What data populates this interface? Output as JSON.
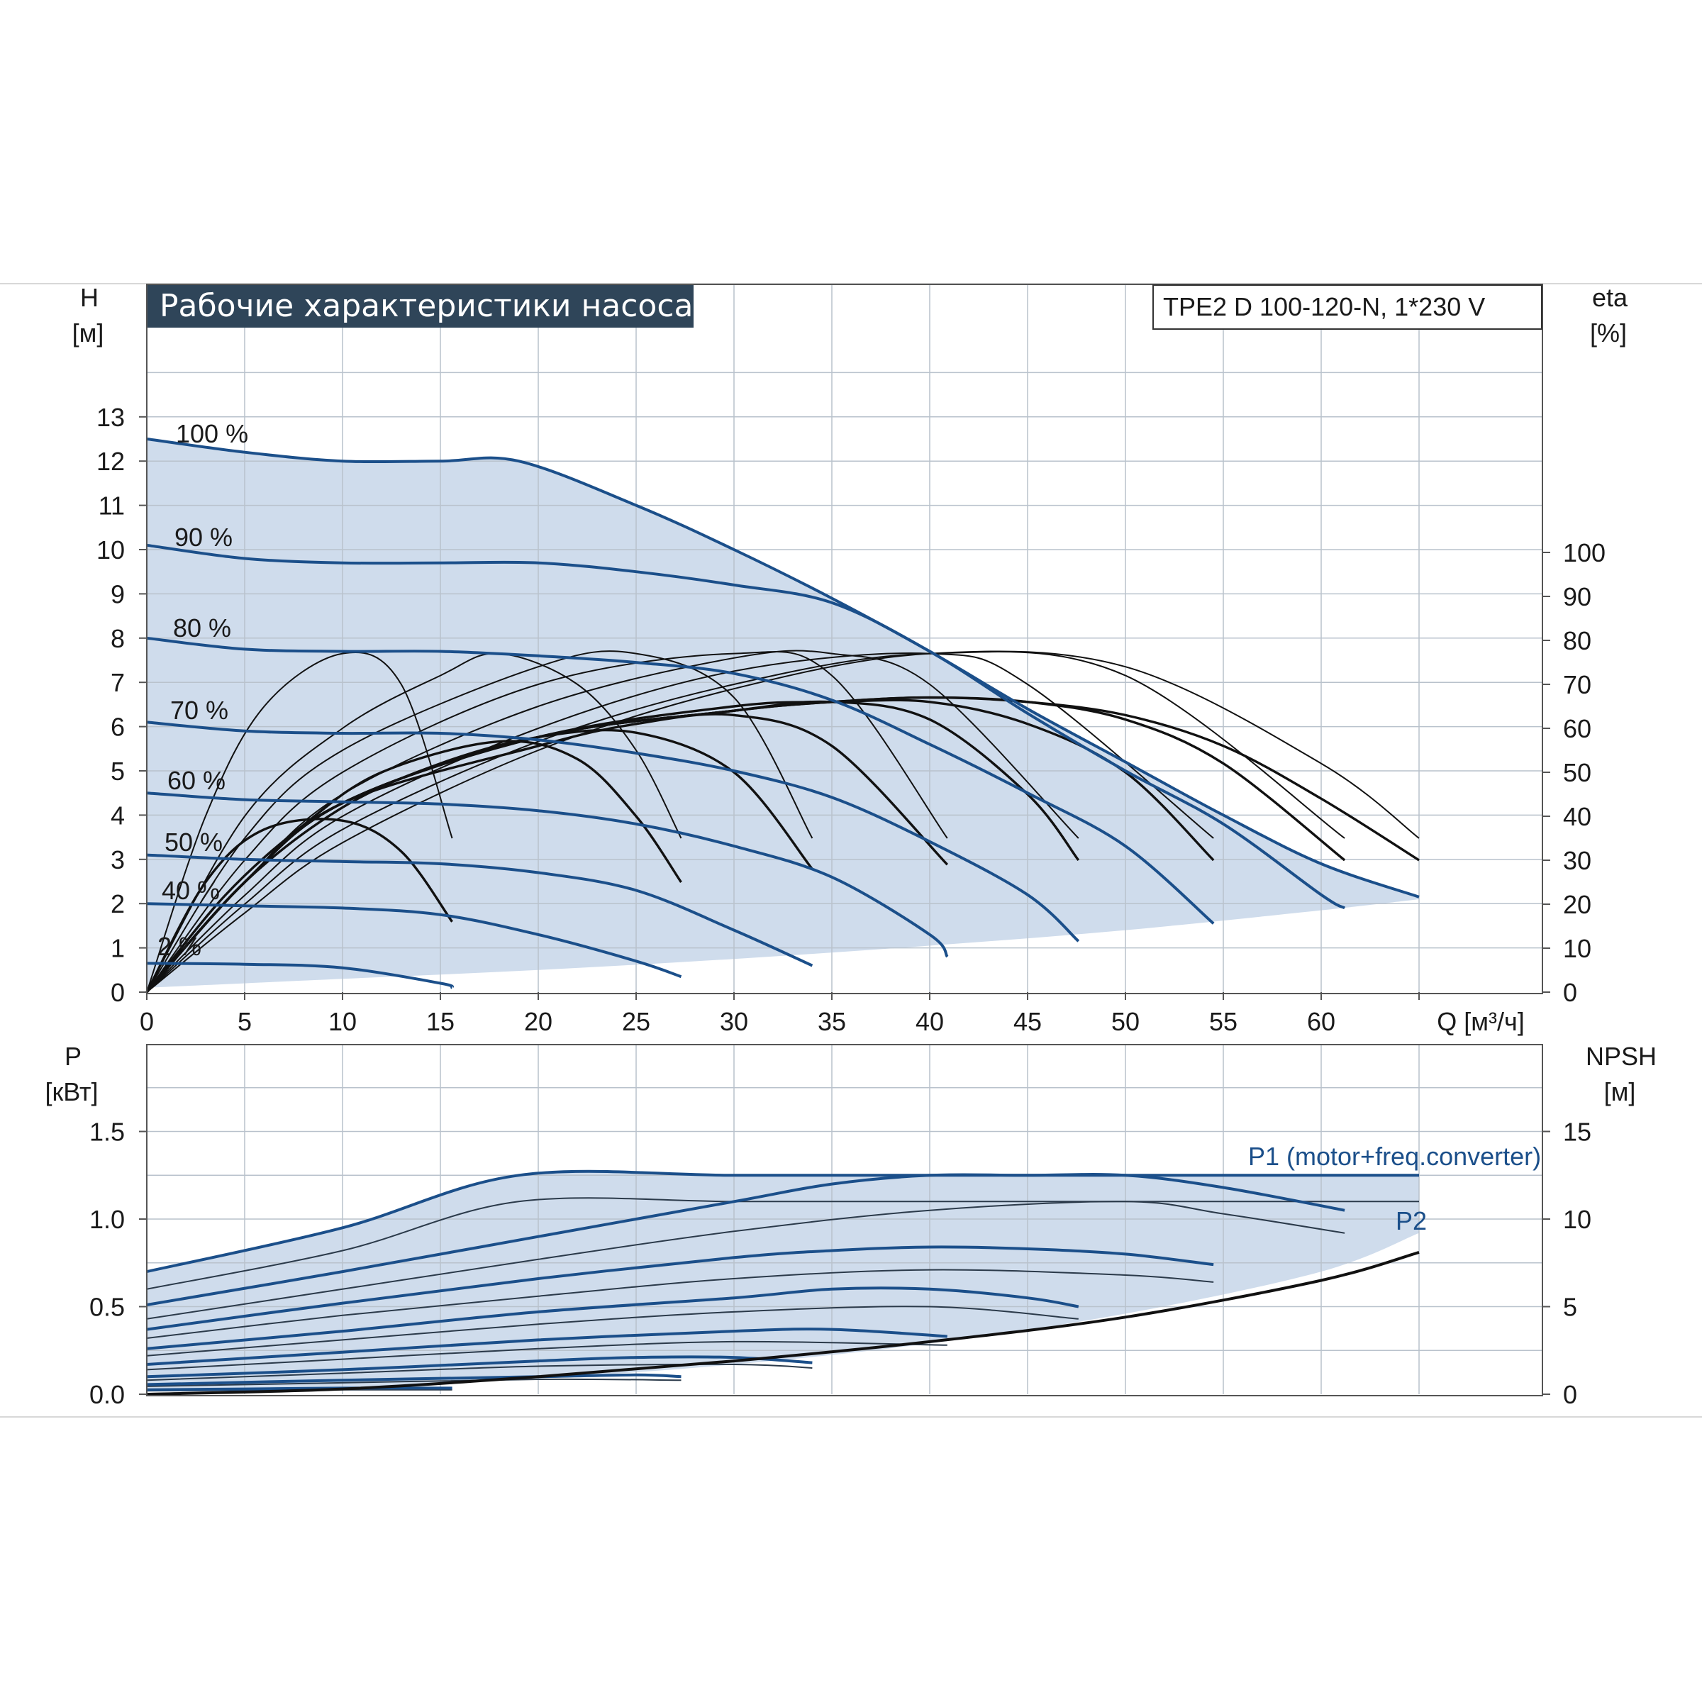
{
  "chart_data": [
    {
      "type": "line",
      "title": "Рабочие характеристики насоса",
      "model": "TPE2 D 100-120-N, 1*230 V",
      "ylabel_left": "H",
      "ylabel_left_unit": "[м]",
      "ylabel_right": "eta",
      "ylabel_right_unit": "[%]",
      "xlabel": "Q [м³/ч]",
      "xlim": [
        0,
        65
      ],
      "ylim": [
        0,
        13
      ],
      "eta_ylim": [
        0,
        100
      ],
      "grid": true,
      "x_ticks": [
        "0",
        "5",
        "10",
        "15",
        "20",
        "25",
        "30",
        "35",
        "40",
        "45",
        "50",
        "55",
        "60"
      ],
      "y_ticks_left": [
        "0",
        "1",
        "2",
        "3",
        "4",
        "5",
        "6",
        "7",
        "8",
        "9",
        "10",
        "11",
        "12",
        "13"
      ],
      "y_ticks_right": [
        "0",
        "10",
        "20",
        "30",
        "40",
        "50",
        "60",
        "70",
        "80",
        "90",
        "100"
      ],
      "speed_curve_labels": [
        "100 %",
        "90 %",
        "80 %",
        "70 %",
        "60 %",
        "50 %",
        "40 %",
        "2 %"
      ],
      "operating_range_min_head": {
        "x": [
          0,
          10,
          20,
          30,
          40,
          50,
          60,
          65
        ],
        "y": [
          0.1,
          0.3,
          0.5,
          0.75,
          1.05,
          1.4,
          1.85,
          2.1
        ]
      },
      "head_series": [
        {
          "name": "100 %",
          "x": [
            0,
            5,
            10,
            15,
            19,
            25,
            30,
            35,
            40,
            45,
            50,
            55,
            60,
            65
          ],
          "y": [
            12.5,
            12.2,
            12.0,
            12.0,
            12.0,
            11.0,
            10.0,
            8.9,
            7.7,
            6.4,
            5.2,
            4.0,
            2.9,
            2.15
          ]
        },
        {
          "name": "90 %",
          "x": [
            0,
            5,
            10,
            15,
            20,
            25,
            30,
            35,
            40,
            45,
            50,
            55,
            60,
            61.2
          ],
          "y": [
            10.1,
            9.8,
            9.7,
            9.7,
            9.7,
            9.5,
            9.2,
            8.8,
            7.7,
            6.3,
            5.0,
            3.8,
            2.2,
            1.9
          ]
        },
        {
          "name": "80 %",
          "x": [
            0,
            5,
            10,
            15,
            20,
            25,
            30,
            35,
            40,
            45,
            50,
            54.5
          ],
          "y": [
            8.0,
            7.75,
            7.7,
            7.7,
            7.6,
            7.45,
            7.2,
            6.6,
            5.6,
            4.5,
            3.3,
            1.55
          ]
        },
        {
          "name": "70 %",
          "x": [
            0,
            5,
            10,
            15,
            20,
            25,
            30,
            35,
            40,
            45,
            47.6
          ],
          "y": [
            6.1,
            5.9,
            5.85,
            5.85,
            5.7,
            5.4,
            5.0,
            4.4,
            3.4,
            2.2,
            1.15
          ]
        },
        {
          "name": "60 %",
          "x": [
            0,
            5,
            10,
            15,
            20,
            25,
            30,
            35,
            40,
            40.9
          ],
          "y": [
            4.5,
            4.35,
            4.3,
            4.25,
            4.1,
            3.8,
            3.3,
            2.6,
            1.3,
            0.8
          ]
        },
        {
          "name": "50 %",
          "x": [
            0,
            5,
            10,
            15,
            20,
            25,
            30,
            34
          ],
          "y": [
            3.1,
            3.0,
            2.95,
            2.9,
            2.7,
            2.3,
            1.4,
            0.6
          ]
        },
        {
          "name": "40 %",
          "x": [
            0,
            5,
            10,
            15,
            20,
            25,
            27.3
          ],
          "y": [
            2.0,
            1.95,
            1.9,
            1.75,
            1.3,
            0.7,
            0.35
          ]
        },
        {
          "name": "2 %",
          "x": [
            0,
            5,
            10,
            15,
            15.6
          ],
          "y": [
            0.65,
            0.63,
            0.55,
            0.2,
            0.1
          ]
        }
      ],
      "eta_series": [
        {
          "x": [
            0,
            3,
            6,
            10,
            13,
            15.6
          ],
          "y": [
            0,
            25,
            37,
            39,
            32,
            16
          ]
        },
        {
          "x": [
            0,
            4,
            8,
            12,
            18,
            22,
            25,
            27.3
          ],
          "y": [
            0,
            22,
            38,
            50,
            57,
            53,
            40,
            25
          ]
        },
        {
          "x": [
            0,
            5,
            10,
            15,
            20,
            25,
            30,
            34
          ],
          "y": [
            0,
            25,
            42,
            52,
            58,
            59,
            50,
            28
          ]
        },
        {
          "x": [
            0,
            5,
            10,
            20,
            25,
            30,
            35,
            40.9
          ],
          "y": [
            0,
            25,
            43,
            56,
            61,
            63,
            56,
            29
          ]
        },
        {
          "x": [
            0,
            5,
            10,
            20,
            30,
            35,
            40,
            45,
            47.6
          ],
          "y": [
            0,
            25,
            43,
            58,
            64,
            66,
            62,
            45,
            30
          ]
        },
        {
          "x": [
            0,
            5,
            10,
            20,
            30,
            35,
            40,
            45,
            50,
            54.5
          ],
          "y": [
            0,
            25,
            43,
            58,
            65,
            66,
            66,
            61,
            50,
            30
          ]
        },
        {
          "x": [
            0,
            5,
            10,
            20,
            30,
            35,
            40,
            45,
            50,
            55,
            61.2
          ],
          "y": [
            0,
            25,
            43,
            58,
            64,
            66,
            67,
            66,
            62,
            52,
            30
          ]
        },
        {
          "x": [
            0,
            5,
            10,
            20,
            30,
            35,
            40,
            45,
            50,
            55,
            60,
            65
          ],
          "y": [
            0,
            25,
            43,
            58,
            64,
            66,
            67,
            66,
            63,
            56,
            44,
            30
          ]
        },
        {
          "x": [
            0,
            3,
            6,
            10,
            13,
            15.6
          ],
          "y": [
            0,
            40,
            65,
            77,
            70,
            35
          ]
        },
        {
          "x": [
            0,
            5,
            10,
            15,
            18,
            22,
            25,
            27.3
          ],
          "y": [
            0,
            40,
            60,
            72,
            77,
            70,
            55,
            35
          ]
        },
        {
          "x": [
            0,
            5,
            10,
            20,
            25,
            30,
            34
          ],
          "y": [
            0,
            35,
            55,
            74,
            77,
            67,
            35
          ]
        },
        {
          "x": [
            0,
            5,
            10,
            20,
            30,
            35,
            40.9
          ],
          "y": [
            0,
            30,
            50,
            70,
            77,
            72,
            35
          ]
        },
        {
          "x": [
            0,
            5,
            10,
            20,
            30,
            35,
            40,
            47.6
          ],
          "y": [
            0,
            25,
            45,
            65,
            76,
            77,
            70,
            35
          ]
        },
        {
          "x": [
            0,
            5,
            10,
            20,
            30,
            40,
            45,
            54.5
          ],
          "y": [
            0,
            22,
            40,
            60,
            73,
            77,
            70,
            35
          ]
        },
        {
          "x": [
            0,
            5,
            10,
            20,
            30,
            40,
            50,
            61.2
          ],
          "y": [
            0,
            20,
            37,
            57,
            70,
            77,
            72,
            35
          ]
        },
        {
          "x": [
            0,
            5,
            10,
            20,
            30,
            40,
            50,
            60,
            65
          ],
          "y": [
            0,
            18,
            34,
            55,
            69,
            77,
            74,
            52,
            35
          ]
        }
      ]
    },
    {
      "type": "line",
      "ylabel_left": "P",
      "ylabel_left_unit": "[кВт]",
      "ylabel_right": "NPSH",
      "ylabel_right_unit": "[м]",
      "xlim": [
        0,
        65
      ],
      "ylim": [
        0,
        1.5
      ],
      "npsh_ylim": [
        0,
        15
      ],
      "grid": true,
      "y_ticks_left": [
        "0.0",
        "0.5",
        "1.0",
        "1.5"
      ],
      "y_ticks_right": [
        "0",
        "5",
        "10",
        "15"
      ],
      "legend": [
        "P1 (motor+freq.converter)",
        "P2"
      ],
      "p1_series": [
        {
          "x": [
            0,
            10,
            19,
            30,
            40,
            50,
            60,
            65
          ],
          "y": [
            0.7,
            0.95,
            1.25,
            1.25,
            1.25,
            1.25,
            1.25,
            1.25
          ]
        },
        {
          "x": [
            0,
            10,
            20,
            30,
            35,
            40,
            45,
            50,
            55,
            61.2
          ],
          "y": [
            0.51,
            0.7,
            0.9,
            1.1,
            1.2,
            1.25,
            1.25,
            1.25,
            1.18,
            1.05
          ]
        },
        {
          "x": [
            0,
            10,
            20,
            30,
            35,
            40,
            45,
            50,
            54.5
          ],
          "y": [
            0.37,
            0.52,
            0.66,
            0.78,
            0.82,
            0.84,
            0.83,
            0.8,
            0.74
          ]
        },
        {
          "x": [
            0,
            10,
            20,
            30,
            35,
            40,
            45,
            47.6
          ],
          "y": [
            0.26,
            0.36,
            0.47,
            0.55,
            0.6,
            0.6,
            0.55,
            0.5
          ]
        },
        {
          "x": [
            0,
            10,
            20,
            30,
            35,
            40.9
          ],
          "y": [
            0.17,
            0.24,
            0.31,
            0.36,
            0.37,
            0.33
          ]
        },
        {
          "x": [
            0,
            10,
            20,
            25,
            30,
            34
          ],
          "y": [
            0.1,
            0.14,
            0.19,
            0.21,
            0.21,
            0.18
          ]
        },
        {
          "x": [
            0,
            10,
            20,
            25,
            27.3
          ],
          "y": [
            0.055,
            0.08,
            0.1,
            0.11,
            0.1
          ]
        },
        {
          "x": [
            0,
            5,
            10,
            15.6
          ],
          "y": [
            0.025,
            0.03,
            0.035,
            0.035
          ]
        }
      ],
      "p2_series": [
        {
          "x": [
            0,
            10,
            19,
            30,
            40,
            50,
            60,
            65
          ],
          "y": [
            0.6,
            0.82,
            1.1,
            1.1,
            1.1,
            1.1,
            1.1,
            1.1
          ]
        },
        {
          "x": [
            0,
            10,
            20,
            30,
            40,
            50,
            55,
            61.2
          ],
          "y": [
            0.43,
            0.6,
            0.77,
            0.93,
            1.05,
            1.1,
            1.03,
            0.92
          ]
        },
        {
          "x": [
            0,
            10,
            20,
            30,
            40,
            50,
            54.5
          ],
          "y": [
            0.32,
            0.45,
            0.56,
            0.66,
            0.71,
            0.68,
            0.64
          ]
        },
        {
          "x": [
            0,
            10,
            20,
            30,
            40,
            47.6
          ],
          "y": [
            0.22,
            0.31,
            0.4,
            0.47,
            0.5,
            0.43
          ]
        },
        {
          "x": [
            0,
            10,
            20,
            30,
            40.9
          ],
          "y": [
            0.14,
            0.2,
            0.26,
            0.3,
            0.28
          ]
        },
        {
          "x": [
            0,
            10,
            20,
            30,
            34
          ],
          "y": [
            0.08,
            0.12,
            0.16,
            0.17,
            0.15
          ]
        },
        {
          "x": [
            0,
            10,
            20,
            27.3
          ],
          "y": [
            0.045,
            0.065,
            0.085,
            0.08
          ]
        },
        {
          "x": [
            0,
            10,
            15.6
          ],
          "y": [
            0.02,
            0.025,
            0.025
          ]
        }
      ],
      "npsh_series": {
        "x": [
          0,
          10,
          20,
          30,
          40,
          50,
          60,
          65
        ],
        "y": [
          0.0,
          0.3,
          1.0,
          1.9,
          3.0,
          4.4,
          6.5,
          8.1
        ]
      }
    }
  ]
}
